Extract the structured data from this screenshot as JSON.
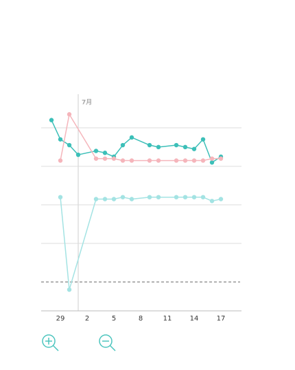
{
  "chart_data": {
    "type": "line",
    "annotation": "7月",
    "categories": [
      null,
      "29",
      null,
      null,
      "2",
      null,
      null,
      "5",
      null,
      null,
      "8",
      null,
      null,
      "11",
      null,
      null,
      "14",
      null,
      null,
      "17"
    ],
    "series": [
      {
        "color": "#3cbfb8",
        "values": [
          84,
          74,
          71,
          66,
          null,
          68,
          67,
          65,
          71,
          75,
          null,
          71,
          70,
          null,
          71,
          70,
          69,
          74,
          62,
          65
        ]
      },
      {
        "color": "#f5b5bb",
        "values": [
          null,
          63,
          87,
          null,
          null,
          64,
          64,
          64,
          63,
          63,
          null,
          63,
          63,
          null,
          63,
          63,
          63,
          63,
          64,
          64
        ]
      },
      {
        "color": "#a3e3e3",
        "values": [
          null,
          44,
          -4,
          null,
          null,
          43,
          43,
          43,
          44,
          43,
          null,
          44,
          44,
          null,
          44,
          44,
          44,
          44,
          42,
          43
        ]
      }
    ],
    "ylim": [
      -15,
      96
    ],
    "yticks": [
      20,
      40,
      60,
      80
    ],
    "grid": true,
    "baseline": 0
  }
}
